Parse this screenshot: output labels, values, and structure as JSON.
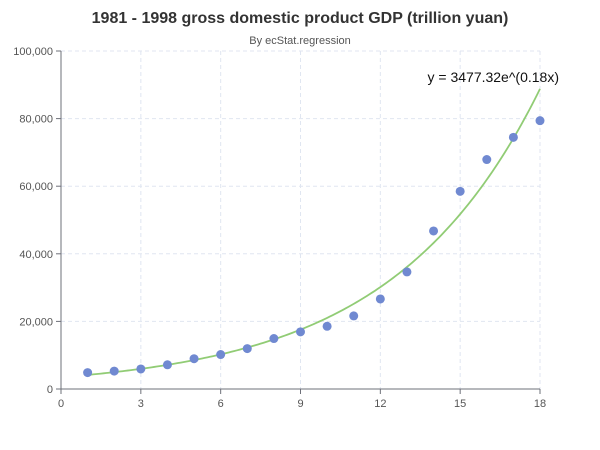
{
  "chart_data": {
    "type": "scatter",
    "title": "1981 - 1998 gross domestic product GDP (trillion yuan)",
    "subtitle": "By ecStat.regression",
    "xlabel": "",
    "ylabel": "",
    "xlim": [
      0,
      18
    ],
    "ylim": [
      0,
      100000
    ],
    "x_ticks": [
      0,
      3,
      6,
      9,
      12,
      15,
      18
    ],
    "y_ticks": [
      0,
      20000,
      40000,
      60000,
      80000,
      100000
    ],
    "y_tick_labels": [
      "0",
      "20,000",
      "40,000",
      "60,000",
      "80,000",
      "100,000"
    ],
    "grid": true,
    "legend": "none",
    "series": [
      {
        "type": "scatter",
        "color": "#7089d1",
        "points": [
          [
            1,
            4863
          ],
          [
            2,
            5295
          ],
          [
            3,
            5935
          ],
          [
            4,
            7171
          ],
          [
            5,
            8964
          ],
          [
            6,
            10202
          ],
          [
            7,
            11963
          ],
          [
            8,
            14928
          ],
          [
            9,
            16909
          ],
          [
            10,
            18548
          ],
          [
            11,
            21618
          ],
          [
            12,
            26638
          ],
          [
            13,
            34634
          ],
          [
            14,
            46759
          ],
          [
            15,
            58478
          ],
          [
            16,
            67885
          ],
          [
            17,
            74463
          ],
          [
            18,
            79396
          ]
        ]
      },
      {
        "type": "line",
        "color": "#91cc75",
        "model": "exponential",
        "coefficient": 3477.32,
        "rate": 0.18,
        "equation": "y = 3477.32e^(0.18x)"
      }
    ]
  }
}
